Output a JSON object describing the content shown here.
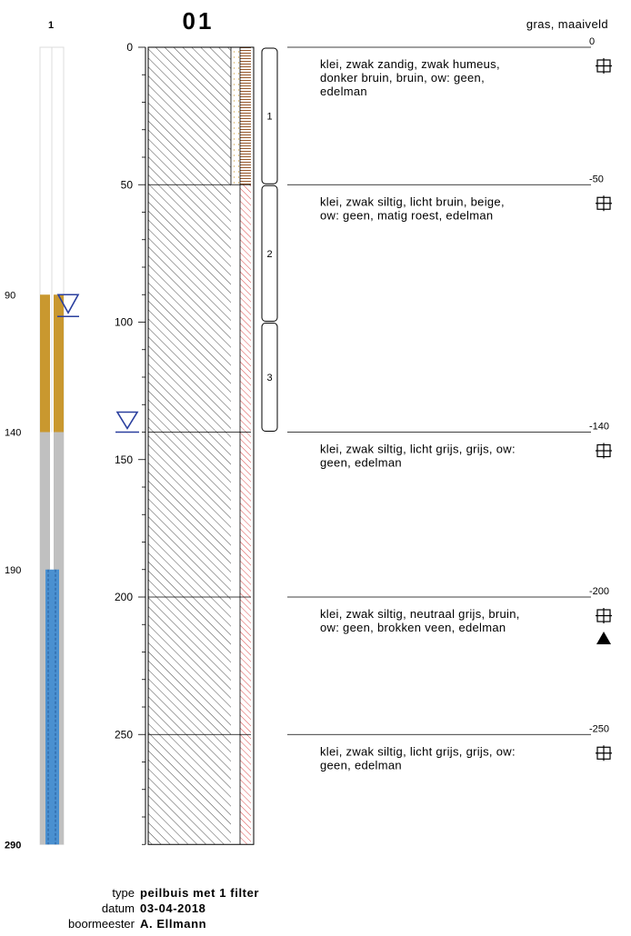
{
  "header": {
    "pipe_number": "1",
    "boring_id": "01",
    "surface_description": "gras, maaiveld"
  },
  "pipe": {
    "labels": [
      "90",
      "140",
      "190",
      "290"
    ],
    "water_level_cm": 90,
    "bentonite_cm": [
      90,
      140
    ],
    "filter_cm": [
      190,
      290
    ]
  },
  "depth_axis": {
    "ticks": [
      "0",
      "50",
      "100",
      "150",
      "200",
      "250"
    ],
    "groundwater_cm": 140
  },
  "samples": [
    {
      "label": "1",
      "from": 0,
      "to": 50
    },
    {
      "label": "2",
      "from": 50,
      "to": 100
    },
    {
      "label": "3",
      "from": 100,
      "to": 140
    }
  ],
  "layers": [
    {
      "top": 0,
      "top_label": "0",
      "text": [
        "klei, zwak zandig, zwak humeus,",
        "donker bruin, bruin, ow: geen,",
        "edelman"
      ],
      "side_pattern": "humus"
    },
    {
      "top": 50,
      "top_label": "-50",
      "text": [
        "klei, zwak siltig, licht bruin, beige,",
        "ow: geen, matig roest, edelman"
      ],
      "side_pattern": "silt"
    },
    {
      "top": 140,
      "top_label": "-140",
      "text": [
        "klei, zwak siltig, licht grijs, grijs, ow:",
        "geen, edelman"
      ],
      "side_pattern": "silt"
    },
    {
      "top": 200,
      "top_label": "-200",
      "text": [
        "klei, zwak siltig, neutraal grijs, bruin,",
        "ow: geen, brokken veen, edelman"
      ],
      "side_pattern": "silt",
      "marker": "triangle"
    },
    {
      "top": 250,
      "top_label": "-250",
      "text": [
        "klei, zwak siltig, licht grijs, grijs, ow:",
        "geen, edelman"
      ],
      "side_pattern": "silt"
    }
  ],
  "final_depth": 290,
  "final_depth_label": "290",
  "footer": {
    "type_label": "type",
    "type_value": "peilbuis met 1 filter",
    "date_label": "datum",
    "date_value": "03-04-2018",
    "driller_label": "boormeester",
    "driller_value": "A. Ellmann"
  },
  "colors": {
    "bentonite": "#c9982f",
    "casing_gray": "#c0c0c0",
    "filter_blue": "#4a90d0",
    "water_symbol": "#2a3f9e",
    "humus_hatch": "#8b4513",
    "silt_hatch": "#d42020"
  }
}
